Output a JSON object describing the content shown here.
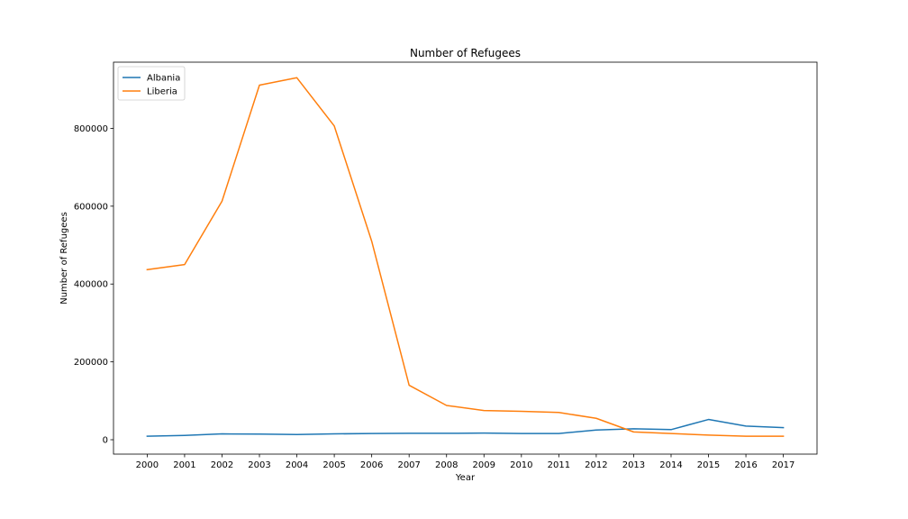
{
  "chart_data": {
    "type": "line",
    "title": "Number of Refugees",
    "xlabel": "Year",
    "ylabel": "Number of Refugees",
    "x": [
      2000,
      2001,
      2002,
      2003,
      2004,
      2005,
      2006,
      2007,
      2008,
      2009,
      2010,
      2011,
      2012,
      2013,
      2014,
      2015,
      2016,
      2017
    ],
    "series": [
      {
        "name": "Albania",
        "color": "#1f77b4",
        "values": [
          9000,
          11000,
          15000,
          14500,
          13500,
          15000,
          16000,
          16500,
          16500,
          17000,
          16000,
          16000,
          25000,
          28000,
          26000,
          52000,
          35000,
          31000
        ]
      },
      {
        "name": "Liberia",
        "color": "#ff7f0e",
        "values": [
          437000,
          450000,
          613000,
          911000,
          930000,
          806000,
          510000,
          140000,
          88000,
          75000,
          73000,
          70000,
          55000,
          20000,
          16000,
          12000,
          9000,
          9000
        ]
      }
    ],
    "xticks": [
      "2000",
      "2001",
      "2002",
      "2003",
      "2004",
      "2005",
      "2006",
      "2007",
      "2008",
      "2009",
      "2010",
      "2011",
      "2012",
      "2013",
      "2014",
      "2015",
      "2016",
      "2017"
    ],
    "yticks": [
      0,
      200000,
      400000,
      600000,
      800000
    ],
    "ytick_labels": [
      "0",
      "200000",
      "400000",
      "600000",
      "800000"
    ],
    "xlim": [
      1999.1,
      2017.9
    ],
    "ylim": [
      -37000,
      970000
    ],
    "grid": false,
    "legend_position": "top-left"
  }
}
